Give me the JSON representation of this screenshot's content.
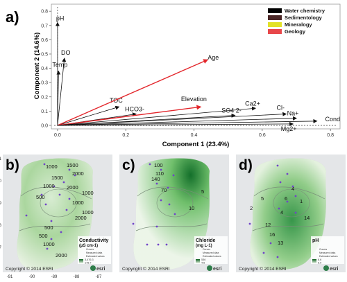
{
  "panel_a": {
    "label": "a)",
    "chart_data": {
      "type": "scatter",
      "subtype": "biplot-vectors",
      "xlabel": "Component 1 (23.4%)",
      "ylabel": "Component 2 (14.6%)",
      "xlim": [
        -0.01,
        0.82
      ],
      "ylim": [
        -0.005,
        0.83
      ],
      "xticks": [
        "0.0",
        "0.2",
        "0.4",
        "0.6",
        "0.8"
      ],
      "yticks": [
        "0.0",
        "0.1",
        "0.2",
        "0.3",
        "0.4",
        "0.5",
        "0.6",
        "0.7",
        "0.8"
      ],
      "legend_position": "top-right",
      "legend": [
        {
          "name": "Water chemistry",
          "color": "#000000"
        },
        {
          "name": "Sedimentology",
          "color": "#4a2626"
        },
        {
          "name": "Mineralogy",
          "color": "#e2e228"
        },
        {
          "name": "Geology",
          "color": "#e8474a"
        }
      ],
      "vectors": [
        {
          "label": "pH",
          "x": 0.0,
          "y": 0.72,
          "group": "Water chemistry"
        },
        {
          "label": "DO",
          "x": 0.02,
          "y": 0.47,
          "group": "Water chemistry"
        },
        {
          "label": "Temp",
          "x": 0.003,
          "y": 0.38,
          "group": "Water chemistry"
        },
        {
          "label": "TOC",
          "x": 0.18,
          "y": 0.13,
          "group": "Water chemistry"
        },
        {
          "label": "HCO3-",
          "x": 0.23,
          "y": 0.08,
          "group": "Water chemistry"
        },
        {
          "label": "Age",
          "x": 0.44,
          "y": 0.46,
          "group": "Geology"
        },
        {
          "label": "Elevation",
          "x": 0.42,
          "y": 0.13,
          "group": "Geology"
        },
        {
          "label": "SO4 2-",
          "x": 0.52,
          "y": 0.07,
          "group": "Water chemistry"
        },
        {
          "label": "Ca2+",
          "x": 0.58,
          "y": 0.12,
          "group": "Water chemistry"
        },
        {
          "label": "Cl-",
          "x": 0.67,
          "y": 0.08,
          "group": "Water chemistry"
        },
        {
          "label": "Na+",
          "x": 0.7,
          "y": 0.05,
          "group": "Water chemistry"
        },
        {
          "label": "Cond",
          "x": 0.76,
          "y": 0.03,
          "group": "Water chemistry"
        },
        {
          "label": "Mg2+",
          "x": 0.69,
          "y": 0.01,
          "group": "Water chemistry"
        }
      ]
    }
  },
  "maps": [
    {
      "label": "b)",
      "legend_title": "Conductivity",
      "legend_unit": "(µS cm-1)",
      "legend_items": [
        "Curves",
        "Measured data",
        "Estimated values"
      ],
      "scale_max": "3,476.3",
      "scale_min": "178.7",
      "copyright": "Copyright © 2014 ESRI",
      "brand": "esri",
      "yticks": [
        "21",
        "20",
        "19",
        "18",
        "17"
      ],
      "xticks": [
        "-91",
        "-90",
        "-89",
        "-88",
        "-87"
      ],
      "contours": [
        "1000",
        "1500",
        "2000",
        "1500",
        "1000",
        "2000",
        "1000",
        "500",
        "1000",
        "2000",
        "1000",
        "500",
        "500",
        "1000",
        "2000"
      ]
    },
    {
      "label": "c)",
      "legend_title": "Chloride",
      "legend_unit": "(mg L-1)",
      "legend_items": [
        "Curves",
        "Measured data",
        "Estimated values"
      ],
      "scale_max": "536",
      "scale_min": "4.6",
      "copyright": "Copyright © 2014 ESRI",
      "brand": "esri",
      "contours": [
        "100",
        "110",
        "140",
        "70",
        "10",
        "5"
      ]
    },
    {
      "label": "d)",
      "legend_title": "pH",
      "legend_unit": "",
      "legend_items": [
        "Curves",
        "Measured data",
        "Estimated values"
      ],
      "scale_max": "8.6",
      "scale_min": "6.9",
      "copyright": "Copyright © 2014 ESRI",
      "brand": "esri",
      "contours": [
        "2",
        "5",
        "6",
        "4",
        "4",
        "12",
        "14",
        "16",
        "13",
        "1"
      ]
    }
  ]
}
